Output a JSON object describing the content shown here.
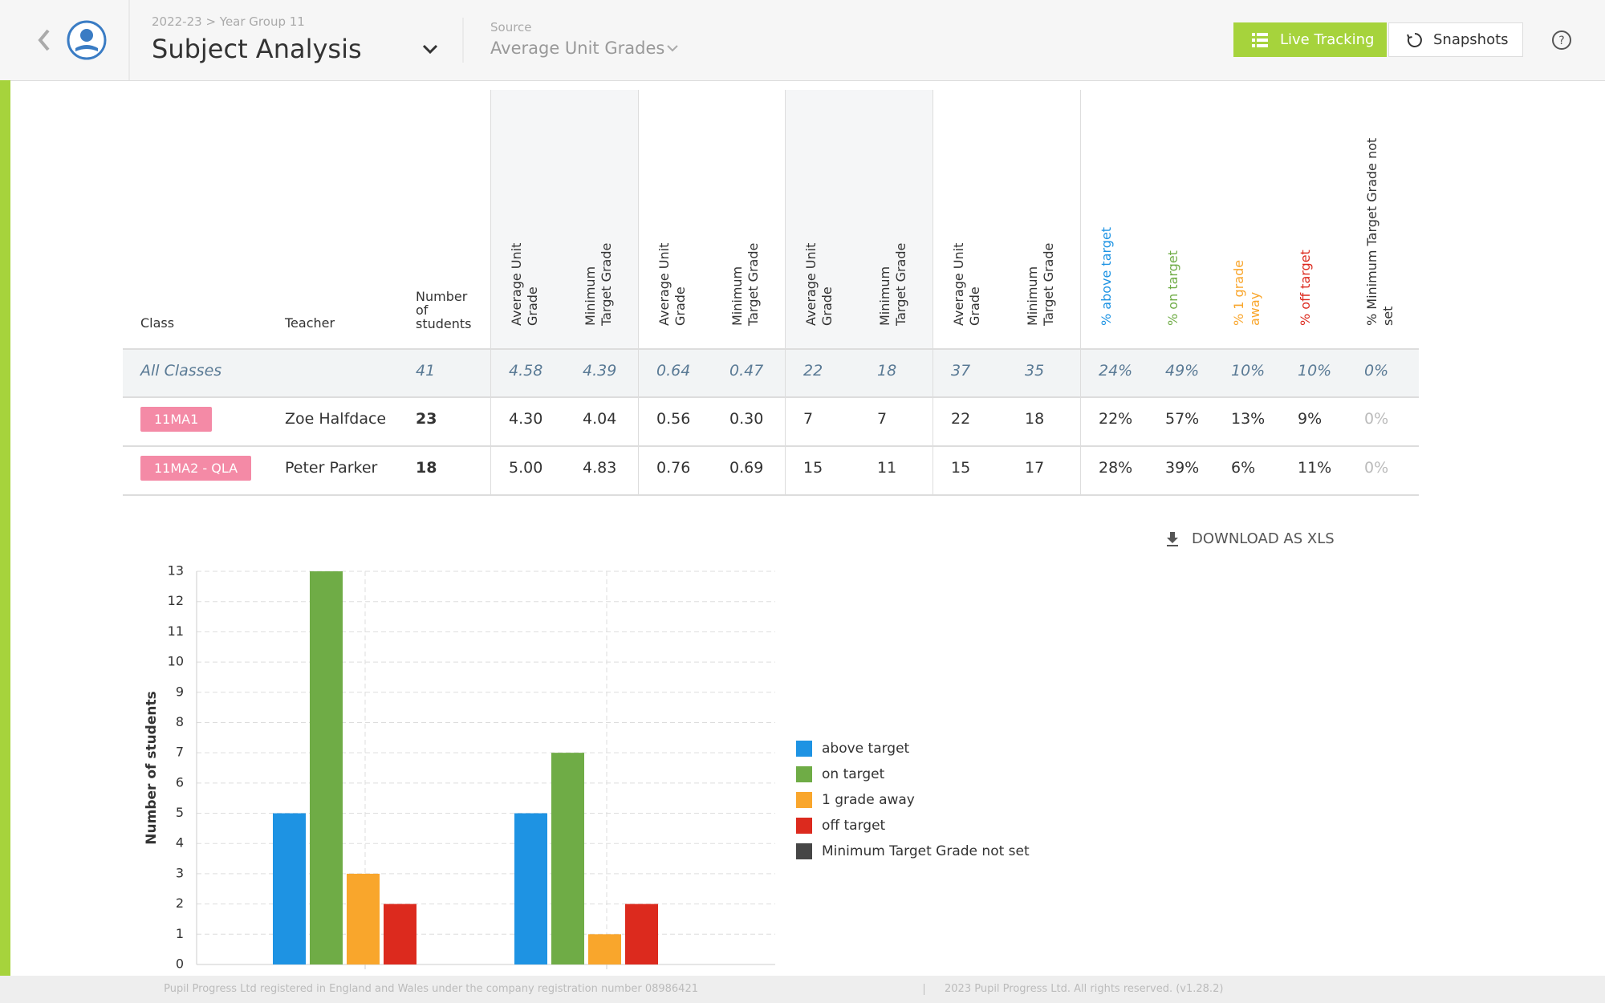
{
  "header": {
    "breadcrumb": "2022-23 > Year Group 11",
    "title": "Subject Analysis",
    "source_label": "Source",
    "source": "Average Unit Grades",
    "live_tracking": "Live Tracking",
    "snapshots": "Snapshots"
  },
  "table": {
    "columns": [
      "Class",
      "Teacher",
      "Number of students",
      "Average Unit Grade",
      "Minimum Target Grade",
      "Average Unit Grade",
      "Minimum Target Grade",
      "Average Unit Grade",
      "Minimum Target Grade",
      "Average Unit Grade",
      "Minimum Target Grade",
      "% above target",
      "% on target",
      "% 1 grade away",
      "% off target",
      "% Minimum Target Grade not set"
    ],
    "rows": [
      [
        "All Classes",
        "",
        "41",
        "4.58",
        "4.39",
        "0.64",
        "0.47",
        "22",
        "18",
        "37",
        "35",
        "24%",
        "49%",
        "10%",
        "10%",
        "0%"
      ],
      [
        "11MA1",
        "Zoe Halfdace",
        "23",
        "4.30",
        "4.04",
        "0.56",
        "0.30",
        "7",
        "7",
        "22",
        "18",
        "22%",
        "57%",
        "13%",
        "9%",
        "0%"
      ],
      [
        "11MA2 - QLA",
        "Peter Parker",
        "18",
        "5.00",
        "4.83",
        "0.76",
        "0.69",
        "15",
        "11",
        "15",
        "17",
        "28%",
        "39%",
        "6%",
        "11%",
        "0%"
      ]
    ]
  },
  "download": "DOWNLOAD AS XLS",
  "chart_data": {
    "type": "bar",
    "y_label": "Number of students",
    "categories": [
      null,
      null
    ],
    "series": [
      {
        "name": "above target",
        "color": "#1e93e3",
        "values": [
          5,
          5
        ]
      },
      {
        "name": "on target",
        "color": "#6fac46",
        "values": [
          13,
          7
        ]
      },
      {
        "name": "1 grade away",
        "color": "#f9a62c",
        "values": [
          3,
          1
        ]
      },
      {
        "name": "off target",
        "color": "#dc2a1e",
        "values": [
          2,
          2
        ]
      },
      {
        "name": "Minimum Target Grade not set",
        "color": "#464646",
        "values": [
          0,
          0
        ]
      }
    ],
    "ylim": [
      0,
      13
    ],
    "yticks": [
      0,
      1,
      2,
      3,
      4,
      5,
      6,
      7,
      8,
      9,
      10,
      11,
      12,
      13
    ],
    "grid": true
  },
  "footer": [
    "Pupil Progress Ltd registered in England and Wales under the company registration number 08986421",
    "2023 Pupil Progress Ltd. All rights reserved. (v1.28.2)"
  ]
}
